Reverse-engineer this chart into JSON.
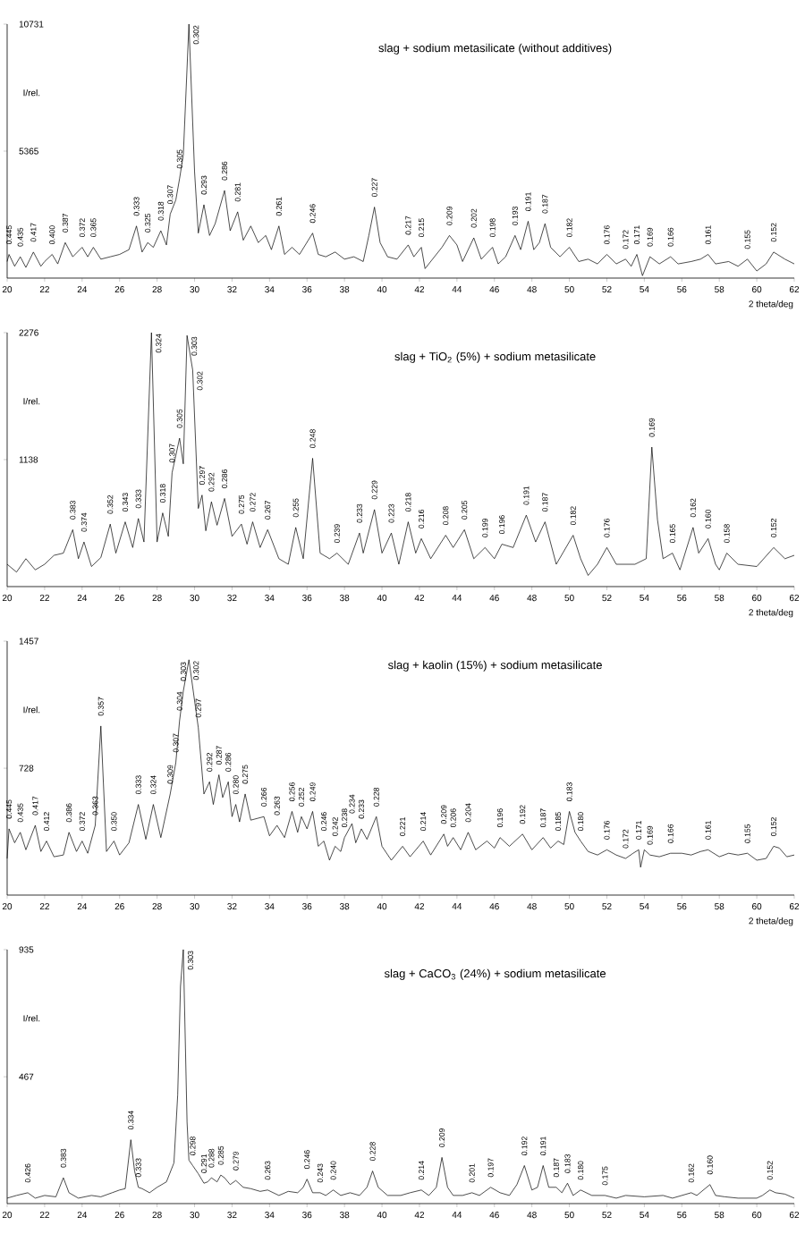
{
  "chart_data": [
    {
      "type": "line",
      "title": "slag + sodium metasilicate (without additives)",
      "xlabel": "2 theta/deg",
      "ylabel": "I/rel.",
      "color": "#000000",
      "xlim": [
        20,
        62
      ],
      "xticks": [
        20,
        22,
        24,
        26,
        28,
        30,
        32,
        34,
        36,
        38,
        40,
        42,
        44,
        46,
        48,
        50,
        52,
        54,
        56,
        58,
        60,
        62
      ],
      "ylim": [
        0,
        10731
      ],
      "yticks": [
        5365,
        10731
      ],
      "x": [
        20.0,
        20.1,
        20.4,
        20.7,
        21.0,
        21.4,
        21.8,
        22.0,
        22.4,
        22.7,
        23.1,
        23.5,
        24.0,
        24.3,
        24.6,
        25.0,
        25.5,
        26.0,
        26.5,
        26.9,
        27.2,
        27.5,
        27.8,
        28.2,
        28.5,
        28.7,
        29.0,
        29.2,
        29.4,
        29.7,
        30.0,
        30.2,
        30.5,
        30.8,
        31.1,
        31.6,
        31.9,
        32.3,
        32.6,
        33.0,
        33.4,
        33.8,
        34.1,
        34.5,
        34.8,
        35.2,
        35.6,
        36.3,
        36.6,
        37.0,
        37.5,
        38.0,
        38.5,
        39.0,
        39.3,
        39.6,
        39.9,
        40.3,
        40.8,
        41.4,
        41.7,
        42.1,
        42.3,
        42.8,
        43.2,
        43.6,
        44.0,
        44.3,
        44.9,
        45.3,
        45.9,
        46.2,
        46.6,
        47.1,
        47.4,
        47.8,
        48.1,
        48.4,
        48.7,
        49.0,
        49.5,
        50.0,
        50.5,
        51.0,
        51.5,
        52.0,
        52.5,
        53.0,
        53.3,
        53.6,
        53.9,
        54.3,
        54.8,
        55.4,
        55.8,
        56.5,
        57.0,
        57.4,
        57.8,
        58.5,
        59.0,
        59.5,
        60.0,
        60.5,
        60.9,
        61.5,
        62.0
      ],
      "values": [
        700,
        1000,
        500,
        900,
        450,
        1100,
        500,
        700,
        1000,
        600,
        1500,
        900,
        1300,
        900,
        1300,
        800,
        900,
        1000,
        1200,
        2200,
        1100,
        1500,
        1300,
        2000,
        1400,
        2700,
        3300,
        4200,
        5200,
        10731,
        4500,
        1900,
        3100,
        1800,
        2300,
        3700,
        2000,
        2800,
        1600,
        2200,
        1500,
        1800,
        1200,
        2200,
        1000,
        1300,
        1000,
        1900,
        1000,
        900,
        1100,
        800,
        900,
        700,
        1800,
        3000,
        1500,
        900,
        800,
        1400,
        900,
        1300,
        400,
        900,
        1300,
        1800,
        1400,
        700,
        1700,
        800,
        1300,
        600,
        900,
        1800,
        1200,
        2400,
        1200,
        1500,
        2300,
        1300,
        900,
        1300,
        700,
        800,
        600,
        1000,
        600,
        800,
        500,
        1000,
        100,
        900,
        600,
        900,
        600,
        700,
        800,
        1000,
        600,
        700,
        500,
        800,
        300,
        600,
        1100,
        800,
        600
      ],
      "annotations": [
        {
          "text": "0.445",
          "x": 20.1,
          "y": 1000
        },
        {
          "text": "0.435",
          "x": 20.7,
          "y": 900
        },
        {
          "text": "0.417",
          "x": 21.4,
          "y": 1100
        },
        {
          "text": "0.400",
          "x": 22.4,
          "y": 1000
        },
        {
          "text": "0.387",
          "x": 23.1,
          "y": 1500
        },
        {
          "text": "0.372",
          "x": 24.0,
          "y": 1300
        },
        {
          "text": "0.365",
          "x": 24.6,
          "y": 1300
        },
        {
          "text": "0.333",
          "x": 26.9,
          "y": 2200
        },
        {
          "text": "0.325",
          "x": 27.5,
          "y": 1500
        },
        {
          "text": "0.318",
          "x": 28.2,
          "y": 2000
        },
        {
          "text": "0.307",
          "x": 28.7,
          "y": 2700
        },
        {
          "text": "0.305",
          "x": 29.2,
          "y": 4200
        },
        {
          "text": "0.302",
          "x": 29.7,
          "y": 10731
        },
        {
          "text": "0.293",
          "x": 30.5,
          "y": 3100
        },
        {
          "text": "0.286",
          "x": 31.6,
          "y": 3700
        },
        {
          "text": "0.281",
          "x": 32.3,
          "y": 2800
        },
        {
          "text": "0.261",
          "x": 34.5,
          "y": 2200
        },
        {
          "text": "0.246",
          "x": 36.3,
          "y": 1900
        },
        {
          "text": "0.227",
          "x": 39.6,
          "y": 3000
        },
        {
          "text": "0.217",
          "x": 41.4,
          "y": 1400
        },
        {
          "text": "0.215",
          "x": 42.1,
          "y": 1300
        },
        {
          "text": "0.209",
          "x": 43.6,
          "y": 1800
        },
        {
          "text": "0.202",
          "x": 44.9,
          "y": 1700
        },
        {
          "text": "0.198",
          "x": 45.9,
          "y": 1300
        },
        {
          "text": "0.193",
          "x": 47.1,
          "y": 1800
        },
        {
          "text": "0.191",
          "x": 47.8,
          "y": 2400
        },
        {
          "text": "0.187",
          "x": 48.7,
          "y": 2300
        },
        {
          "text": "0.182",
          "x": 50.0,
          "y": 1300
        },
        {
          "text": "0.176",
          "x": 52.0,
          "y": 1000
        },
        {
          "text": "0.172",
          "x": 53.0,
          "y": 800
        },
        {
          "text": "0.171",
          "x": 53.6,
          "y": 1000
        },
        {
          "text": "0.169",
          "x": 54.3,
          "y": 900
        },
        {
          "text": "0.166",
          "x": 55.4,
          "y": 900
        },
        {
          "text": "0.161",
          "x": 57.4,
          "y": 1000
        },
        {
          "text": "0.155",
          "x": 59.5,
          "y": 800
        },
        {
          "text": "0.152",
          "x": 60.9,
          "y": 1100
        }
      ]
    },
    {
      "type": "line",
      "title": "slag + TiO$_{2}$ (5%) + sodium metasilicate",
      "xlabel": "2 theta/deg",
      "ylabel": "I/rel.",
      "color": "#000000",
      "xlim": [
        20,
        62
      ],
      "xticks": [
        20,
        22,
        24,
        26,
        28,
        30,
        32,
        34,
        36,
        38,
        40,
        42,
        44,
        46,
        48,
        50,
        52,
        54,
        56,
        58,
        60,
        62
      ],
      "ylim": [
        0,
        2276
      ],
      "yticks": [
        1138,
        2276
      ],
      "x": [
        20.0,
        20.5,
        21.0,
        21.5,
        22.0,
        22.5,
        23.0,
        23.5,
        23.8,
        24.1,
        24.5,
        25.0,
        25.5,
        25.8,
        26.3,
        26.7,
        27.0,
        27.3,
        27.7,
        28.0,
        28.3,
        28.6,
        28.8,
        29.2,
        29.4,
        29.6,
        29.9,
        30.2,
        30.4,
        30.6,
        30.9,
        31.2,
        31.6,
        32.0,
        32.5,
        32.8,
        33.1,
        33.5,
        33.9,
        34.5,
        35.0,
        35.4,
        35.8,
        36.3,
        36.7,
        37.2,
        37.6,
        38.2,
        38.8,
        39.0,
        39.6,
        40.0,
        40.5,
        40.9,
        41.4,
        41.8,
        42.1,
        42.6,
        43.4,
        43.8,
        44.4,
        44.9,
        45.5,
        46.0,
        46.4,
        47.0,
        47.7,
        48.2,
        48.7,
        49.3,
        50.2,
        50.6,
        51.0,
        51.5,
        52.0,
        52.5,
        53.5,
        54.1,
        54.4,
        54.7,
        55.0,
        55.5,
        55.9,
        56.6,
        56.9,
        57.4,
        57.8,
        58.0,
        58.4,
        59.0,
        60.0,
        60.9,
        61.5,
        62.0
      ],
      "values": [
        200,
        130,
        250,
        150,
        200,
        280,
        300,
        510,
        250,
        400,
        180,
        260,
        560,
        300,
        580,
        350,
        610,
        400,
        2276,
        400,
        660,
        450,
        1020,
        1330,
        1100,
        2250,
        1940,
        700,
        820,
        500,
        760,
        550,
        790,
        450,
        560,
        380,
        580,
        350,
        510,
        250,
        200,
        530,
        250,
        1150,
        300,
        250,
        300,
        200,
        480,
        300,
        690,
        300,
        480,
        200,
        580,
        300,
        430,
        250,
        460,
        350,
        510,
        250,
        350,
        250,
        380,
        350,
        640,
        400,
        580,
        200,
        460,
        250,
        100,
        200,
        350,
        200,
        200,
        250,
        1250,
        600,
        250,
        300,
        150,
        530,
        300,
        430,
        200,
        150,
        300,
        200,
        180,
        350,
        250,
        280
      ],
      "annotations": [
        {
          "text": "0.383",
          "x": 23.5,
          "y": 510
        },
        {
          "text": "0.374",
          "x": 24.1,
          "y": 400
        },
        {
          "text": "0.352",
          "x": 25.5,
          "y": 560
        },
        {
          "text": "0.343",
          "x": 26.3,
          "y": 580
        },
        {
          "text": "0.333",
          "x": 27.0,
          "y": 610
        },
        {
          "text": "0.324",
          "x": 27.7,
          "y": 2276
        },
        {
          "text": "0.318",
          "x": 28.3,
          "y": 660
        },
        {
          "text": "0.307",
          "x": 28.8,
          "y": 1020
        },
        {
          "text": "0.305",
          "x": 29.2,
          "y": 1330
        },
        {
          "text": "0.303",
          "x": 29.6,
          "y": 2250
        },
        {
          "text": "0.302",
          "x": 29.9,
          "y": 1940
        },
        {
          "text": "0.297",
          "x": 30.4,
          "y": 820
        },
        {
          "text": "0.292",
          "x": 30.9,
          "y": 760
        },
        {
          "text": "0.286",
          "x": 31.6,
          "y": 790
        },
        {
          "text": "0.275",
          "x": 32.5,
          "y": 560
        },
        {
          "text": "0.272",
          "x": 33.1,
          "y": 580
        },
        {
          "text": "0.267",
          "x": 33.9,
          "y": 510
        },
        {
          "text": "0.255",
          "x": 35.4,
          "y": 530
        },
        {
          "text": "0.248",
          "x": 36.3,
          "y": 1150
        },
        {
          "text": "0.239",
          "x": 37.6,
          "y": 300
        },
        {
          "text": "0.233",
          "x": 38.8,
          "y": 480
        },
        {
          "text": "0.229",
          "x": 39.6,
          "y": 690
        },
        {
          "text": "0.223",
          "x": 40.5,
          "y": 480
        },
        {
          "text": "0.218",
          "x": 41.4,
          "y": 580
        },
        {
          "text": "0.216",
          "x": 42.1,
          "y": 430
        },
        {
          "text": "0.208",
          "x": 43.4,
          "y": 460
        },
        {
          "text": "0.205",
          "x": 44.4,
          "y": 510
        },
        {
          "text": "0.199",
          "x": 45.5,
          "y": 350
        },
        {
          "text": "0.196",
          "x": 46.4,
          "y": 380
        },
        {
          "text": "0.191",
          "x": 47.7,
          "y": 640
        },
        {
          "text": "0.187",
          "x": 48.7,
          "y": 580
        },
        {
          "text": "0.182",
          "x": 50.2,
          "y": 460
        },
        {
          "text": "0.176",
          "x": 52.0,
          "y": 350
        },
        {
          "text": "0.169",
          "x": 54.4,
          "y": 1250
        },
        {
          "text": "0.165",
          "x": 55.5,
          "y": 300
        },
        {
          "text": "0.162",
          "x": 56.6,
          "y": 530
        },
        {
          "text": "0.160",
          "x": 57.4,
          "y": 430
        },
        {
          "text": "0.158",
          "x": 58.4,
          "y": 300
        },
        {
          "text": "0.152",
          "x": 60.9,
          "y": 350
        }
      ]
    },
    {
      "type": "line",
      "title": "slag + kaolin (15%) + sodium metasilicate",
      "xlabel": "2 theta/deg",
      "ylabel": "I/rel.",
      "color": "#000000",
      "xlim": [
        20,
        62
      ],
      "xticks": [
        20,
        22,
        24,
        26,
        28,
        30,
        32,
        34,
        36,
        38,
        40,
        42,
        44,
        46,
        48,
        50,
        52,
        54,
        56,
        58,
        60,
        62
      ],
      "ylim": [
        0,
        1457
      ],
      "yticks": [
        728,
        1457
      ],
      "x": [
        20.0,
        20.1,
        20.4,
        20.7,
        21.0,
        21.5,
        21.8,
        22.1,
        22.5,
        23.0,
        23.3,
        23.7,
        24.0,
        24.3,
        24.7,
        25.0,
        25.3,
        25.7,
        26.0,
        26.5,
        27.0,
        27.4,
        27.8,
        28.2,
        28.7,
        29.0,
        29.2,
        29.4,
        29.7,
        30.2,
        30.5,
        30.8,
        31.0,
        31.3,
        31.5,
        31.8,
        32.0,
        32.2,
        32.4,
        32.7,
        33.0,
        33.7,
        34.0,
        34.4,
        34.8,
        35.2,
        35.5,
        35.7,
        36.0,
        36.3,
        36.6,
        36.9,
        37.2,
        37.5,
        37.8,
        38.0,
        38.4,
        38.6,
        38.9,
        39.2,
        39.7,
        40.0,
        40.5,
        41.1,
        41.5,
        42.2,
        42.6,
        43.3,
        43.5,
        43.8,
        44.2,
        44.6,
        45.0,
        45.6,
        46.0,
        46.3,
        46.8,
        47.0,
        47.5,
        48.0,
        48.6,
        49.0,
        49.4,
        49.7,
        50.0,
        50.3,
        50.6,
        51.0,
        51.5,
        52.0,
        52.5,
        53.0,
        53.4,
        53.7,
        53.8,
        54.0,
        54.3,
        54.8,
        55.4,
        56.0,
        56.5,
        57.0,
        57.4,
        58.0,
        58.5,
        59.0,
        59.5,
        60.0,
        60.5,
        60.9,
        61.2,
        61.6,
        62.0
      ],
      "values": [
        210,
        380,
        300,
        360,
        260,
        400,
        250,
        310,
        220,
        230,
        360,
        250,
        310,
        240,
        400,
        970,
        250,
        310,
        230,
        300,
        520,
        320,
        520,
        330,
        580,
        760,
        1000,
        1170,
        1350,
        960,
        580,
        650,
        520,
        690,
        560,
        650,
        450,
        520,
        420,
        580,
        430,
        450,
        340,
        400,
        330,
        480,
        360,
        450,
        380,
        480,
        280,
        310,
        200,
        280,
        250,
        330,
        410,
        300,
        380,
        320,
        450,
        280,
        200,
        280,
        220,
        310,
        230,
        350,
        280,
        330,
        260,
        360,
        260,
        310,
        270,
        330,
        280,
        300,
        350,
        260,
        330,
        270,
        310,
        290,
        480,
        360,
        310,
        250,
        230,
        260,
        230,
        210,
        240,
        260,
        160,
        260,
        230,
        220,
        240,
        240,
        230,
        250,
        260,
        220,
        240,
        230,
        240,
        200,
        210,
        280,
        270,
        220,
        230
      ],
      "annotations": [
        {
          "text": "0.445",
          "x": 20.1,
          "y": 380
        },
        {
          "text": "0.435",
          "x": 20.7,
          "y": 360
        },
        {
          "text": "0.417",
          "x": 21.5,
          "y": 400
        },
        {
          "text": "0.412",
          "x": 22.1,
          "y": 310
        },
        {
          "text": "0.386",
          "x": 23.3,
          "y": 360
        },
        {
          "text": "0.372",
          "x": 24.0,
          "y": 310
        },
        {
          "text": "0.363",
          "x": 24.7,
          "y": 400
        },
        {
          "text": "0.357",
          "x": 25.0,
          "y": 970
        },
        {
          "text": "0.350",
          "x": 25.7,
          "y": 310
        },
        {
          "text": "0.333",
          "x": 27.0,
          "y": 520
        },
        {
          "text": "0.324",
          "x": 27.8,
          "y": 520
        },
        {
          "text": "0.309",
          "x": 28.7,
          "y": 580
        },
        {
          "text": "0.307",
          "x": 29.0,
          "y": 760
        },
        {
          "text": "0.304",
          "x": 29.2,
          "y": 1000
        },
        {
          "text": "0.303",
          "x": 29.4,
          "y": 1170
        },
        {
          "text": "0.302",
          "x": 29.7,
          "y": 1350
        },
        {
          "text": "0.297",
          "x": 30.2,
          "y": 960
        },
        {
          "text": "0.292",
          "x": 30.8,
          "y": 650
        },
        {
          "text": "0.287",
          "x": 31.3,
          "y": 690
        },
        {
          "text": "0.286",
          "x": 31.8,
          "y": 650
        },
        {
          "text": "0.280",
          "x": 32.2,
          "y": 520
        },
        {
          "text": "0.275",
          "x": 32.7,
          "y": 580
        },
        {
          "text": "0.266",
          "x": 33.7,
          "y": 450
        },
        {
          "text": "0.263",
          "x": 34.4,
          "y": 400
        },
        {
          "text": "0.256",
          "x": 35.2,
          "y": 480
        },
        {
          "text": "0.252",
          "x": 35.7,
          "y": 450
        },
        {
          "text": "0.249",
          "x": 36.3,
          "y": 480
        },
        {
          "text": "0.246",
          "x": 36.9,
          "y": 310
        },
        {
          "text": "0.242",
          "x": 37.5,
          "y": 280
        },
        {
          "text": "0.238",
          "x": 38.0,
          "y": 330
        },
        {
          "text": "0.234",
          "x": 38.4,
          "y": 410
        },
        {
          "text": "0.233",
          "x": 38.9,
          "y": 380
        },
        {
          "text": "0.228",
          "x": 39.7,
          "y": 450
        },
        {
          "text": "0.221",
          "x": 41.1,
          "y": 280
        },
        {
          "text": "0.214",
          "x": 42.2,
          "y": 310
        },
        {
          "text": "0.209",
          "x": 43.3,
          "y": 350
        },
        {
          "text": "0.206",
          "x": 43.8,
          "y": 330
        },
        {
          "text": "0.204",
          "x": 44.6,
          "y": 360
        },
        {
          "text": "0.196",
          "x": 46.3,
          "y": 330
        },
        {
          "text": "0.192",
          "x": 47.5,
          "y": 350
        },
        {
          "text": "0.187",
          "x": 48.6,
          "y": 330
        },
        {
          "text": "0.185",
          "x": 49.4,
          "y": 310
        },
        {
          "text": "0.183",
          "x": 50.0,
          "y": 480
        },
        {
          "text": "0.180",
          "x": 50.6,
          "y": 310
        },
        {
          "text": "0.176",
          "x": 52.0,
          "y": 260
        },
        {
          "text": "0.172",
          "x": 53.0,
          "y": 210
        },
        {
          "text": "0.171",
          "x": 53.7,
          "y": 260
        },
        {
          "text": "0.169",
          "x": 54.3,
          "y": 230
        },
        {
          "text": "0.166",
          "x": 55.4,
          "y": 240
        },
        {
          "text": "0.161",
          "x": 57.4,
          "y": 260
        },
        {
          "text": "0.155",
          "x": 59.5,
          "y": 240
        },
        {
          "text": "0.152",
          "x": 60.9,
          "y": 280
        }
      ]
    },
    {
      "type": "line",
      "title": "slag + CaCO$_{3}$ (24%) + sodium metasilicate",
      "ylabel": "I/rel.",
      "color": "#000000",
      "xlim": [
        20,
        62
      ],
      "xticks": [
        20,
        22,
        24,
        26,
        28,
        30,
        32,
        34,
        36,
        38,
        40,
        42,
        44,
        46,
        48,
        50,
        52,
        54,
        56,
        58,
        60,
        62
      ],
      "ylim": [
        0,
        935
      ],
      "yticks": [
        467,
        935
      ],
      "x": [
        20.0,
        20.5,
        21.1,
        21.5,
        22.0,
        22.6,
        23.0,
        23.3,
        23.8,
        24.5,
        25.0,
        25.6,
        26.0,
        26.3,
        26.6,
        26.8,
        27.0,
        27.2,
        27.6,
        28.0,
        28.5,
        28.9,
        29.1,
        29.25,
        29.4,
        29.6,
        29.7,
        29.9,
        30.2,
        30.5,
        30.7,
        30.9,
        31.2,
        31.4,
        31.6,
        31.9,
        32.2,
        32.6,
        33.0,
        33.5,
        33.9,
        34.5,
        35.0,
        35.5,
        35.8,
        36.0,
        36.3,
        36.7,
        37.0,
        37.4,
        37.8,
        38.3,
        38.8,
        39.2,
        39.5,
        39.8,
        40.3,
        41.0,
        41.5,
        42.1,
        42.5,
        42.9,
        43.2,
        43.5,
        43.8,
        44.3,
        44.8,
        45.2,
        45.8,
        46.3,
        46.8,
        47.2,
        47.6,
        48.0,
        48.3,
        48.6,
        48.9,
        49.3,
        49.6,
        49.9,
        50.2,
        50.6,
        51.2,
        51.9,
        52.5,
        53.0,
        54.0,
        55.0,
        55.5,
        56.0,
        56.5,
        56.8,
        57.5,
        57.8,
        58.3,
        59.0,
        60.0,
        60.3,
        60.7,
        61.0,
        61.5,
        62.0
      ],
      "values": [
        20,
        30,
        40,
        20,
        30,
        25,
        95,
        40,
        20,
        30,
        25,
        40,
        50,
        55,
        235,
        120,
        60,
        55,
        40,
        60,
        80,
        150,
        400,
        800,
        935,
        300,
        160,
        140,
        110,
        75,
        80,
        95,
        80,
        105,
        95,
        70,
        85,
        60,
        55,
        45,
        50,
        30,
        45,
        40,
        60,
        90,
        40,
        40,
        30,
        50,
        30,
        40,
        30,
        60,
        120,
        60,
        30,
        30,
        40,
        50,
        30,
        60,
        170,
        60,
        30,
        30,
        40,
        30,
        60,
        40,
        30,
        70,
        140,
        50,
        60,
        140,
        60,
        60,
        40,
        75,
        30,
        50,
        30,
        30,
        20,
        30,
        25,
        30,
        20,
        30,
        40,
        30,
        70,
        30,
        25,
        20,
        20,
        30,
        50,
        40,
        35,
        20
      ],
      "annotations": [
        {
          "text": "0.426",
          "x": 21.1,
          "y": 40
        },
        {
          "text": "0.383",
          "x": 23.0,
          "y": 95
        },
        {
          "text": "0.334",
          "x": 26.6,
          "y": 235
        },
        {
          "text": "0.333",
          "x": 27.0,
          "y": 60
        },
        {
          "text": "0.303",
          "x": 29.4,
          "y": 935
        },
        {
          "text": "0.298",
          "x": 29.9,
          "y": 140
        },
        {
          "text": "0.291",
          "x": 30.5,
          "y": 75
        },
        {
          "text": "0.288",
          "x": 30.9,
          "y": 95
        },
        {
          "text": "0.285",
          "x": 31.4,
          "y": 105
        },
        {
          "text": "0.279",
          "x": 32.2,
          "y": 85
        },
        {
          "text": "0.263",
          "x": 33.9,
          "y": 50
        },
        {
          "text": "0.246",
          "x": 36.0,
          "y": 90
        },
        {
          "text": "0.243",
          "x": 36.7,
          "y": 40
        },
        {
          "text": "0.240",
          "x": 37.4,
          "y": 50
        },
        {
          "text": "0.228",
          "x": 39.5,
          "y": 120
        },
        {
          "text": "0.214",
          "x": 42.1,
          "y": 50
        },
        {
          "text": "0.209",
          "x": 43.2,
          "y": 170
        },
        {
          "text": "0.201",
          "x": 44.8,
          "y": 40
        },
        {
          "text": "0.197",
          "x": 45.8,
          "y": 60
        },
        {
          "text": "0.192",
          "x": 47.6,
          "y": 140
        },
        {
          "text": "0.191",
          "x": 48.6,
          "y": 140
        },
        {
          "text": "0.187",
          "x": 49.3,
          "y": 60
        },
        {
          "text": "0.183",
          "x": 49.9,
          "y": 75
        },
        {
          "text": "0.180",
          "x": 50.6,
          "y": 50
        },
        {
          "text": "0.175",
          "x": 51.9,
          "y": 30
        },
        {
          "text": "0.162",
          "x": 56.5,
          "y": 40
        },
        {
          "text": "0.160",
          "x": 57.5,
          "y": 70
        },
        {
          "text": "0.152",
          "x": 60.7,
          "y": 50
        }
      ]
    }
  ]
}
